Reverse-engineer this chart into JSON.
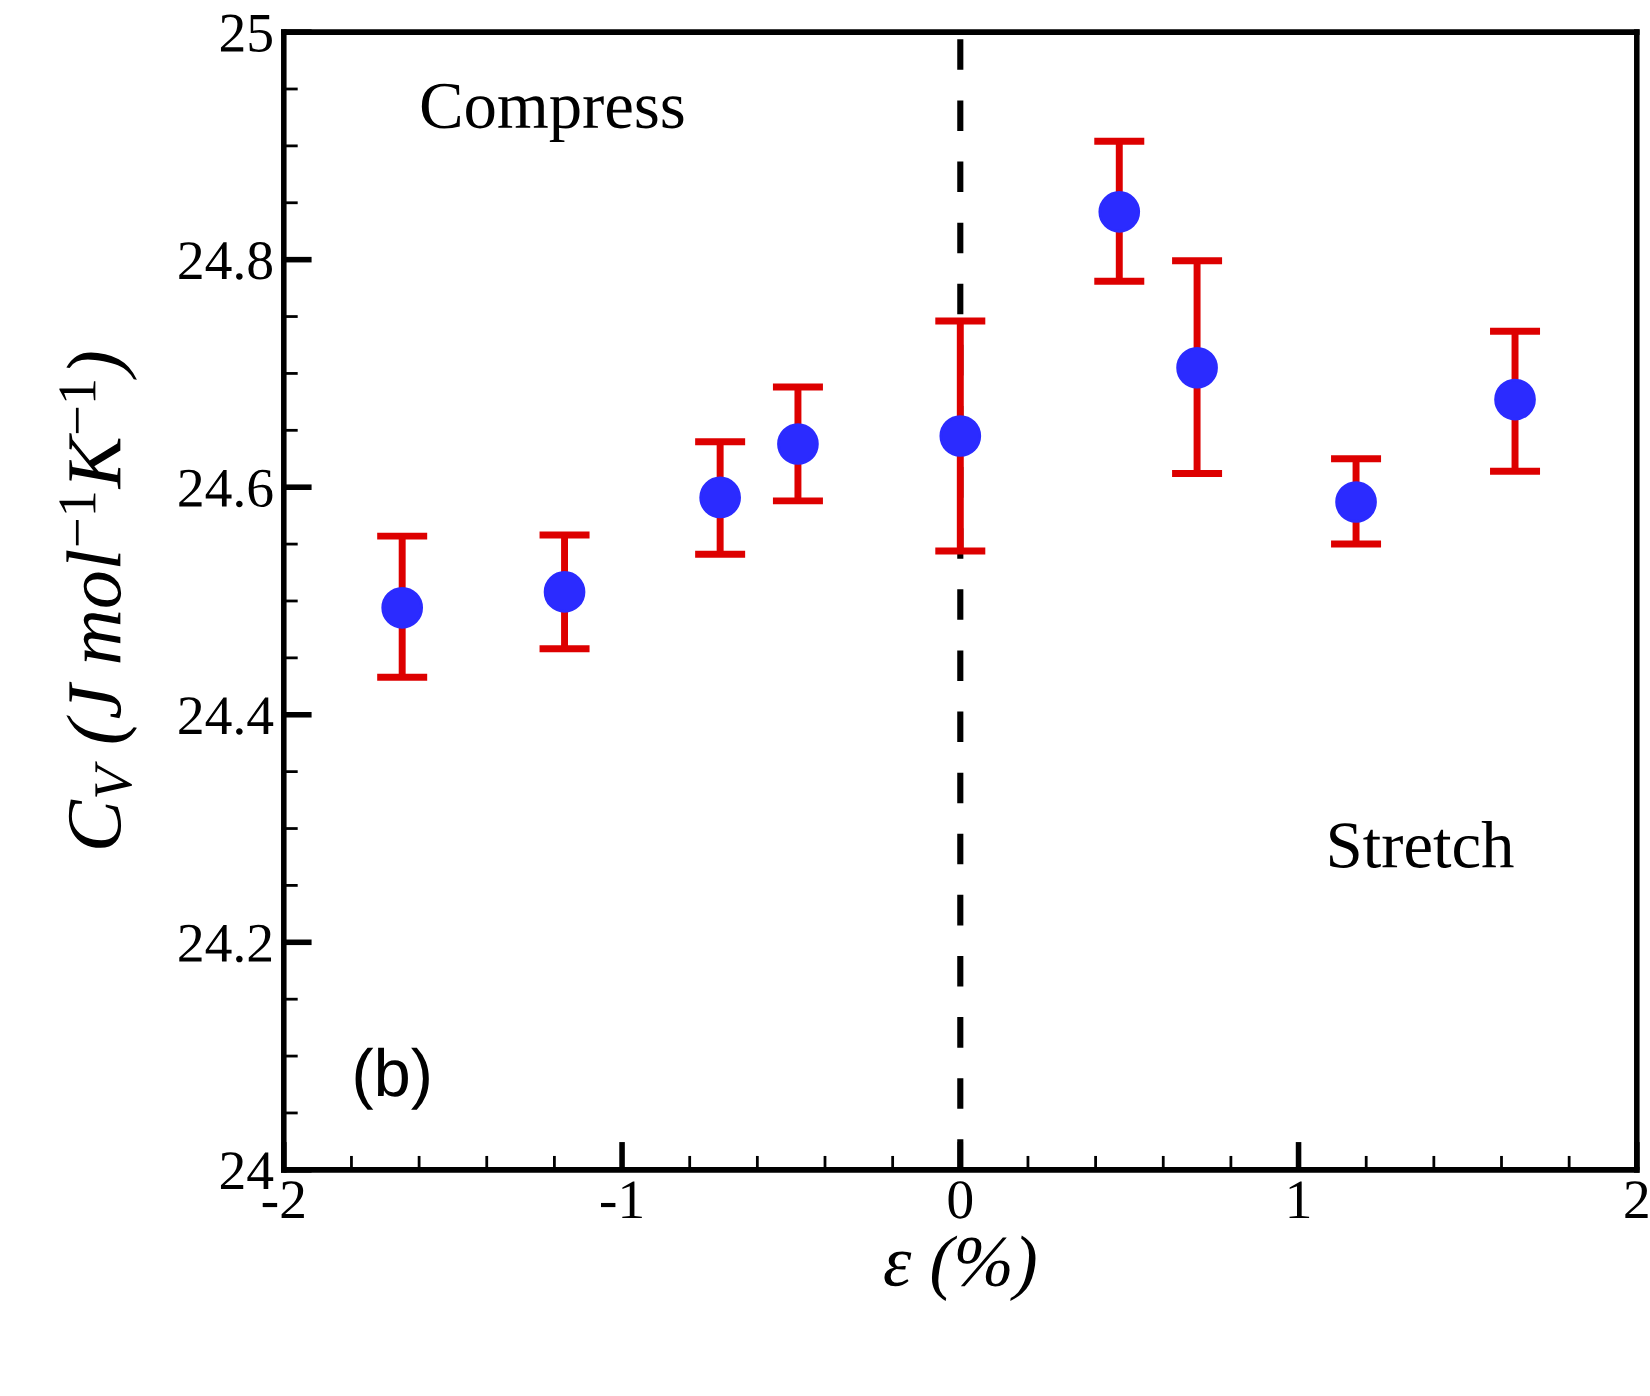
{
  "chart_data": {
    "type": "scatter",
    "xlabel": "ε (%)",
    "ylabel": "C$_{V}$ (J mol$^{−1}$K$^{−1}$)",
    "x": [
      -1.65,
      -1.17,
      -0.71,
      -0.48,
      0,
      0.47,
      0.7,
      1.17,
      1.64
    ],
    "series": [
      {
        "color": "#2b2bff",
        "values": [
          24.494,
          24.508,
          24.591,
          24.638,
          24.645,
          24.842,
          24.705,
          24.587,
          24.677
        ],
        "errors": [
          [
            24.433,
            24.557
          ],
          [
            24.458,
            24.558
          ],
          [
            24.541,
            24.64
          ],
          [
            24.588,
            24.688
          ],
          [
            24.544,
            24.746
          ],
          [
            24.781,
            24.904
          ],
          [
            24.612,
            24.799
          ],
          [
            24.55,
            24.625
          ],
          [
            24.614,
            24.737
          ]
        ]
      }
    ],
    "marker": "circle",
    "xlim": [
      -2,
      2
    ],
    "xticks": [
      -2,
      -1,
      0,
      1,
      2
    ],
    "ylim": [
      24,
      25
    ],
    "yticks": [
      24,
      24.2,
      24.4,
      24.6,
      24.8,
      25
    ],
    "ref_lines": [
      {
        "axis": "x",
        "value": 0,
        "color": "#000000",
        "line_style": "dashed"
      }
    ],
    "annotations": [
      "Compress",
      "Stretch",
      "(b)"
    ],
    "grid": false,
    "legend": false
  }
}
